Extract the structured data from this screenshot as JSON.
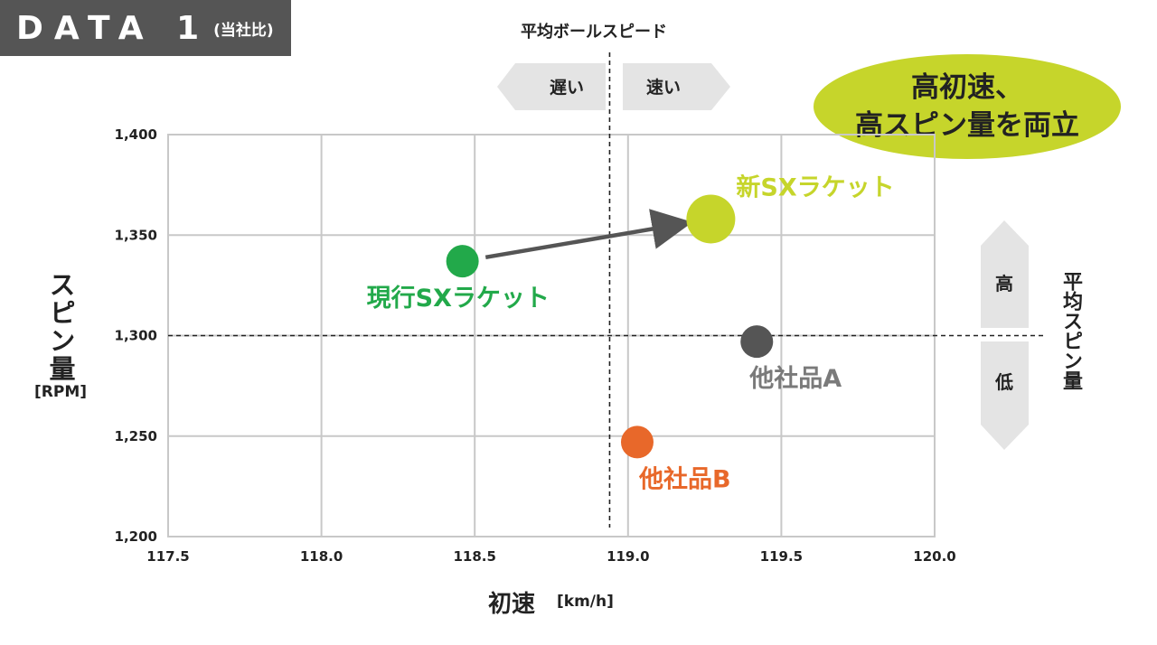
{
  "header": {
    "badge_main": "DATA 1",
    "badge_sub": "(当社比)"
  },
  "callout": {
    "line1": "高初速、",
    "line2": "高スピン量を両立"
  },
  "guides": {
    "avg_ball_label": "平均ボールスピード",
    "slow_label": "遅い",
    "fast_label": "速い",
    "avg_spin_label": "平均スピン量",
    "high_label": "高",
    "low_label": "低"
  },
  "chart_data": {
    "type": "scatter",
    "xlabel": "初速",
    "xunit": "[km/h]",
    "ylabel": "スピン量",
    "yunit": "[RPM]",
    "xlim": [
      117.5,
      120.0
    ],
    "ylim": [
      1200,
      1400
    ],
    "xticks": [
      "117.5",
      "118.0",
      "118.5",
      "119.0",
      "119.5",
      "120.0"
    ],
    "yticks": [
      "1,400",
      "1,350",
      "1,300",
      "1,250",
      "1,200"
    ],
    "grid": true,
    "avg_ball_speed": 118.94,
    "avg_spin": 1300,
    "points": [
      {
        "label": "現行SXラケット",
        "x": 118.46,
        "y": 1337,
        "color": "#22a94a",
        "label_color": "#22a94a",
        "size": "small"
      },
      {
        "label": "新SXラケット",
        "x": 119.27,
        "y": 1358,
        "color": "#c6d52b",
        "label_color": "#c6d52b",
        "size": "large"
      },
      {
        "label": "他社品A",
        "x": 119.42,
        "y": 1297,
        "color": "#555555",
        "label_color": "#7a7a7a",
        "size": "small"
      },
      {
        "label": "他社品B",
        "x": 119.03,
        "y": 1247,
        "color": "#e8682a",
        "label_color": "#e8682a",
        "size": "small"
      }
    ],
    "arrow": {
      "from": "現行SXラケット",
      "to": "新SXラケット",
      "color": "#555555"
    }
  }
}
